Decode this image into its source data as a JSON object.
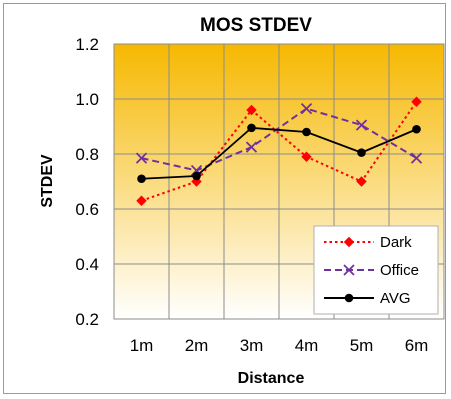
{
  "chart_data": {
    "type": "line",
    "title": "MOS STDEV",
    "xlabel": "Distance",
    "ylabel": "STDEV",
    "categories": [
      "1m",
      "2m",
      "3m",
      "4m",
      "5m",
      "6m"
    ],
    "ylim": [
      0.2,
      1.2
    ],
    "yticks": [
      "0.2",
      "0.4",
      "0.6",
      "0.8",
      "1.0",
      "1.2"
    ],
    "grid": true,
    "legend_position": "bottom-right",
    "background": {
      "top": "#f6b800",
      "bottom": "#ffffff"
    },
    "series": [
      {
        "name": "Dark",
        "values": [
          0.63,
          0.7,
          0.96,
          0.79,
          0.7,
          0.99
        ],
        "color": "#ff0000",
        "dash": "dotted",
        "marker": "diamond"
      },
      {
        "name": "Office",
        "values": [
          0.785,
          0.74,
          0.825,
          0.965,
          0.905,
          0.785
        ],
        "color": "#7030a0",
        "dash": "dashed",
        "marker": "x"
      },
      {
        "name": "AVG",
        "values": [
          0.71,
          0.72,
          0.895,
          0.88,
          0.805,
          0.89
        ],
        "color": "#000000",
        "dash": "solid",
        "marker": "circle"
      }
    ]
  }
}
